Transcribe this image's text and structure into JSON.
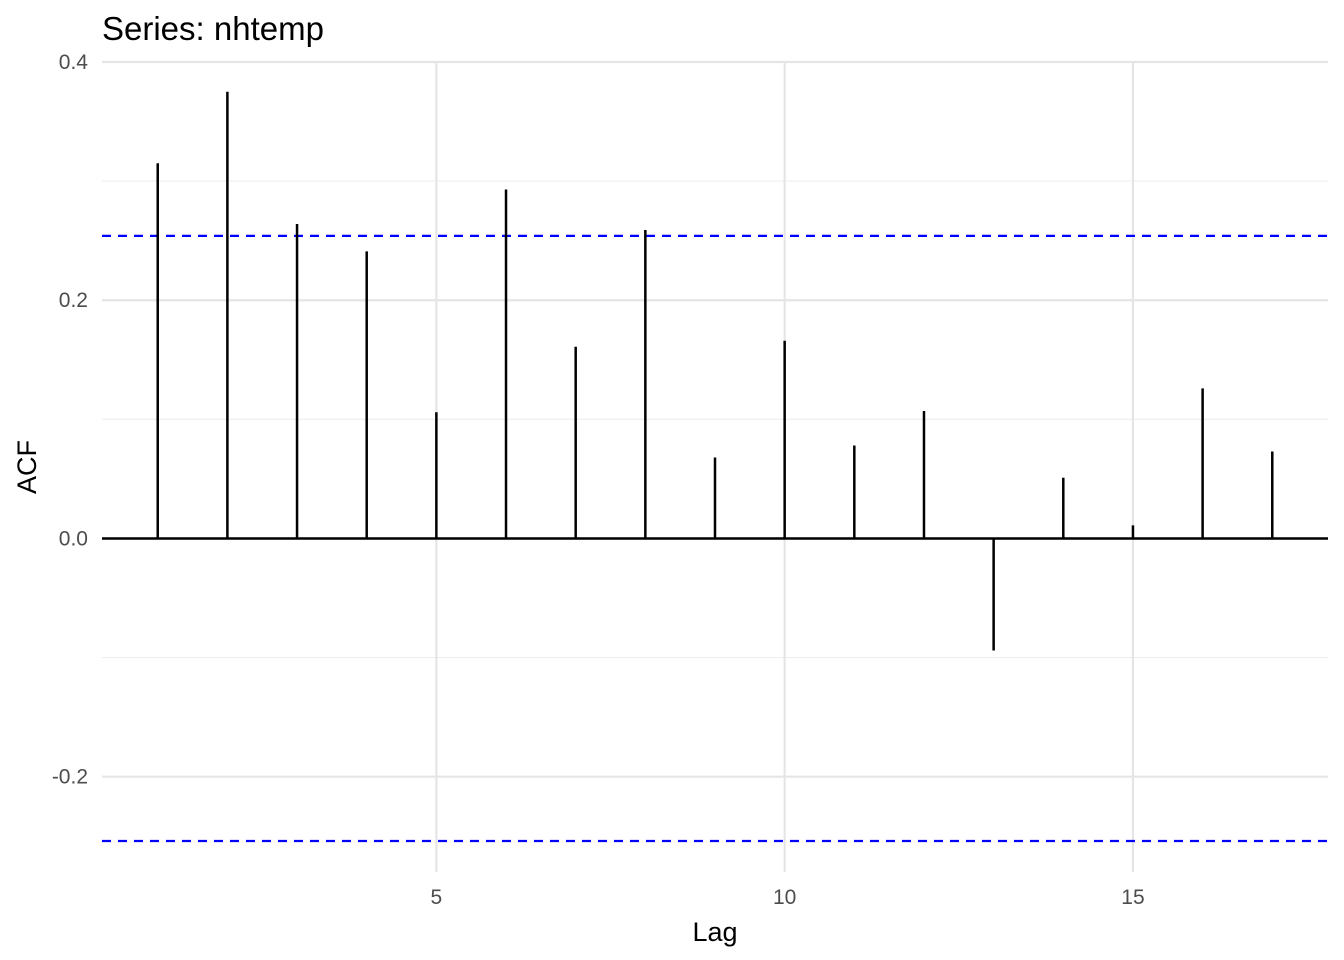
{
  "chart_data": {
    "type": "bar",
    "title": "Series: nhtemp",
    "xlabel": "Lag",
    "ylabel": "ACF",
    "x": [
      1,
      2,
      3,
      4,
      5,
      6,
      7,
      8,
      9,
      10,
      11,
      12,
      13,
      14,
      15,
      16,
      17
    ],
    "values": [
      0.315,
      0.375,
      0.264,
      0.241,
      0.106,
      0.293,
      0.161,
      0.259,
      0.068,
      0.166,
      0.078,
      0.107,
      -0.094,
      0.051,
      0.011,
      0.126,
      0.073
    ],
    "confidence_bound": 0.254,
    "confidence_color": "#0000ff",
    "bar_color": "#000000",
    "xlim": [
      0.2,
      17.8
    ],
    "ylim": [
      -0.28,
      0.4
    ],
    "x_ticks": [
      5,
      10,
      15
    ],
    "x_tick_labels": [
      "5",
      "10",
      "15"
    ],
    "y_ticks": [
      -0.2,
      0.0,
      0.2,
      0.4
    ],
    "y_tick_labels": [
      "-0.2",
      "0.0",
      "0.2",
      "0.4"
    ],
    "grid": true
  }
}
